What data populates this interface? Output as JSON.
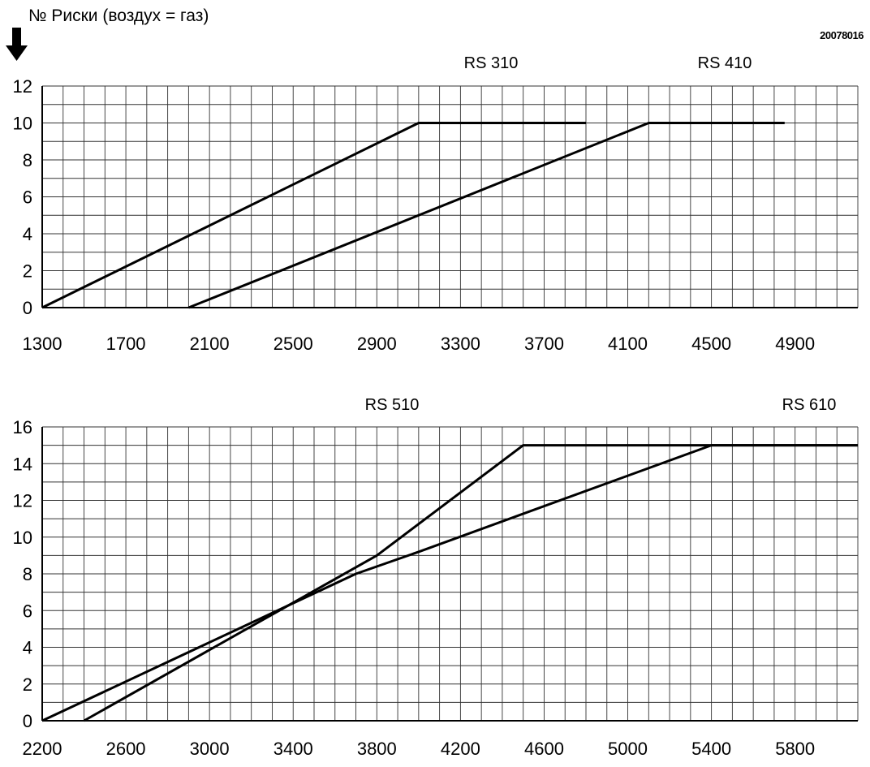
{
  "header": {
    "title": "№ Риски (воздух = газ)",
    "code": "20078016"
  },
  "chart_data": [
    {
      "type": "line",
      "xlim": [
        1300,
        5200
      ],
      "ylim": [
        0,
        12
      ],
      "x_ticks": [
        1300,
        1700,
        2100,
        2500,
        2900,
        3300,
        3700,
        4100,
        4500,
        4900
      ],
      "y_ticks": [
        0,
        2,
        4,
        6,
        8,
        10,
        12
      ],
      "x_minor_step": 100,
      "y_minor_step": 1,
      "grid": true,
      "series": [
        {
          "name": "RS 310",
          "x": [
            1300,
            3100,
            3900
          ],
          "y": [
            0,
            10,
            10
          ]
        },
        {
          "name": "RS 410",
          "x": [
            2000,
            4200,
            4850
          ],
          "y": [
            0,
            10,
            10
          ]
        }
      ]
    },
    {
      "type": "line",
      "xlim": [
        2200,
        6100
      ],
      "ylim": [
        0,
        16
      ],
      "x_ticks": [
        2200,
        2600,
        3000,
        3400,
        3800,
        4200,
        4600,
        5000,
        5400,
        5800
      ],
      "y_ticks": [
        0,
        2,
        4,
        6,
        8,
        10,
        12,
        14,
        16
      ],
      "x_minor_step": 100,
      "y_minor_step": 1,
      "grid": true,
      "series": [
        {
          "name": "RS 510",
          "x": [
            2400,
            3800,
            4500,
            6100
          ],
          "y": [
            0,
            9,
            15,
            15
          ]
        },
        {
          "name": "RS 610",
          "x": [
            2200,
            3700,
            4000,
            5400,
            6100
          ],
          "y": [
            0,
            8,
            9.2,
            15,
            15
          ]
        }
      ]
    }
  ]
}
